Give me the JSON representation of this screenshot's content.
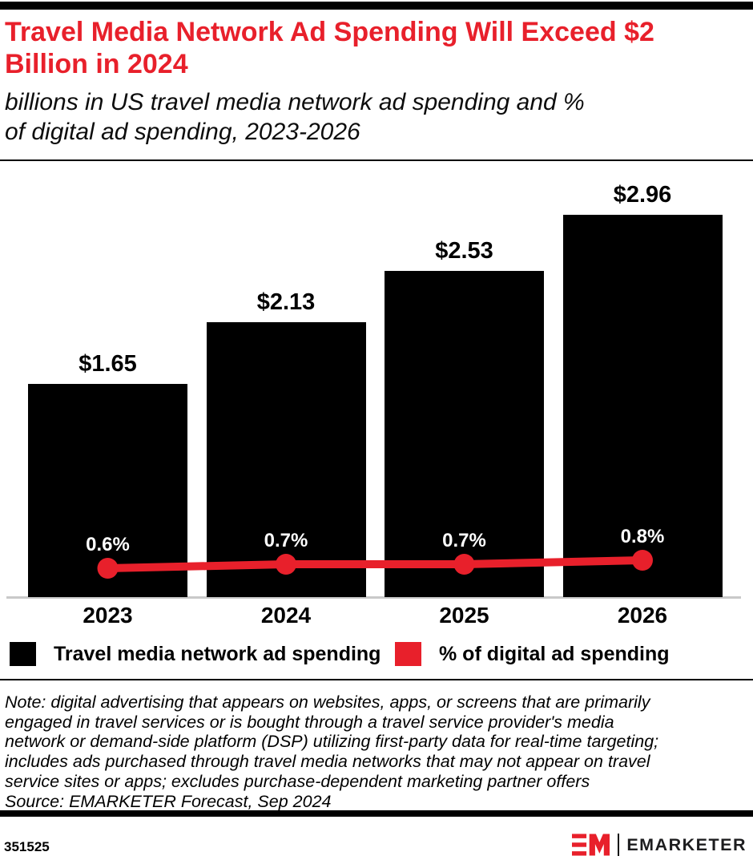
{
  "header": {
    "title_lines": [
      "Travel Media Network Ad Spending Will Exceed $2",
      "Billion in 2024"
    ],
    "title_full": "Travel Media Network Ad Spending Will Exceed $2 Billion in 2024",
    "subtitle_lines": [
      "billions in US travel media network ad spending and %",
      "of digital ad spending, 2023-2026"
    ]
  },
  "chart_data": {
    "type": "bar",
    "categories": [
      "2023",
      "2024",
      "2025",
      "2026"
    ],
    "series": [
      {
        "name": "Travel media network ad spending",
        "type": "bar",
        "unit": "billions of US$",
        "values": [
          1.65,
          2.13,
          2.53,
          2.96
        ],
        "labels": [
          "$1.65",
          "$2.13",
          "$2.53",
          "$2.96"
        ],
        "color": "#000000"
      },
      {
        "name": "% of digital ad spending",
        "type": "line",
        "unit": "%",
        "values": [
          0.6,
          0.7,
          0.7,
          0.8
        ],
        "labels": [
          "0.6%",
          "0.7%",
          "0.7%",
          "0.8%"
        ],
        "color": "#E8202B"
      }
    ],
    "ylim": [
      0,
      3.32
    ],
    "xlabel": "",
    "ylabel": "",
    "grid": false,
    "legend_position": "bottom"
  },
  "legend": {
    "items": [
      {
        "label": "Travel media network ad spending",
        "color": "#000000"
      },
      {
        "label": "% of digital ad spending",
        "color": "#E8202B"
      }
    ]
  },
  "note": {
    "lines": [
      "Note: digital advertising that appears on websites, apps, or screens that are primarily",
      "engaged in travel services or is bought through a travel service provider's media",
      "network or demand-side platform (DSP) utilizing first-party data for real-time targeting;",
      "includes ads purchased through travel media networks that may not appear on travel",
      "service sites or apps; excludes purchase-dependent marketing partner offers"
    ],
    "source": "Source: EMARKETER Forecast, Sep 2024"
  },
  "footer": {
    "chart_id": "351525",
    "brand": "EMARKETER"
  },
  "colors": {
    "accent_red": "#E8202B",
    "bar_black": "#000000",
    "axis_gray": "#c9c9c9",
    "white": "#ffffff"
  }
}
